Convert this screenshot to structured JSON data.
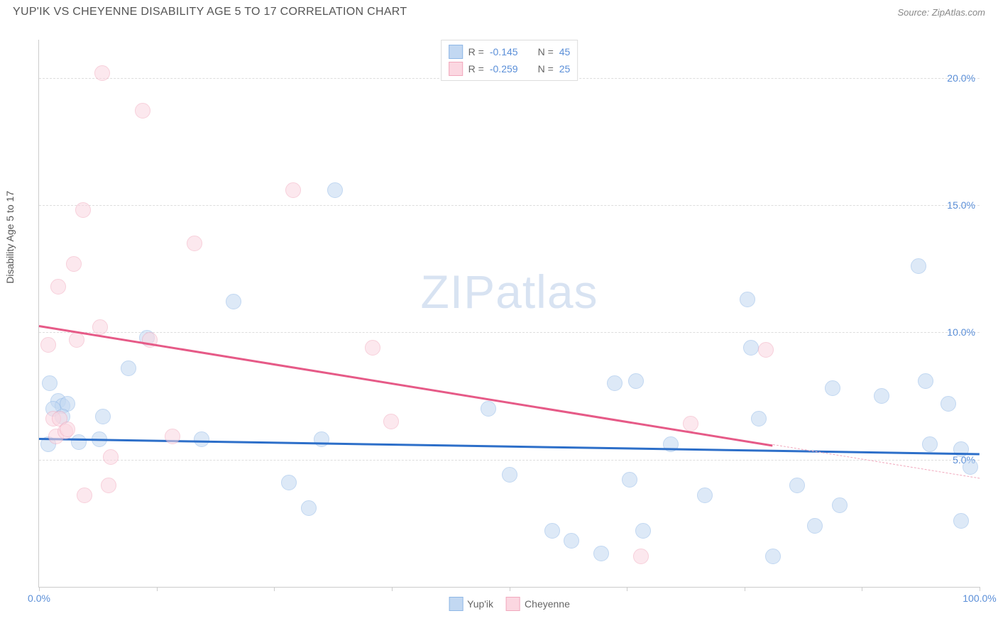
{
  "title": "YUP'IK VS CHEYENNE DISABILITY AGE 5 TO 17 CORRELATION CHART",
  "source": "Source: ZipAtlas.com",
  "ylabel": "Disability Age 5 to 17",
  "watermark_zip": "ZIP",
  "watermark_atlas": "atlas",
  "chart": {
    "type": "scatter",
    "background_color": "#ffffff",
    "grid_color": "#dddddd",
    "xlim": [
      0,
      100
    ],
    "ylim": [
      0,
      21.5
    ],
    "x_ticks": [
      0,
      12.5,
      25,
      37.5,
      50,
      62.5,
      75,
      87.5,
      100
    ],
    "x_tick_labels": {
      "0": "0.0%",
      "100": "100.0%"
    },
    "y_gridlines": [
      5,
      10,
      15,
      20
    ],
    "y_tick_labels": {
      "5": "5.0%",
      "10": "10.0%",
      "15": "15.0%",
      "20": "20.0%"
    },
    "point_radius": 11,
    "point_opacity": 0.55,
    "series": [
      {
        "name": "Yup'ik",
        "color": "#8fb7e6",
        "fill": "#c2d8f2",
        "line_color": "#2d6fc9",
        "R": "-0.145",
        "N": "45",
        "regression": {
          "x0": 0,
          "y0": 5.85,
          "x1": 100,
          "y1": 5.25,
          "ext_to_x": 100
        },
        "points": [
          [
            1.1,
            8.0
          ],
          [
            2.0,
            7.3
          ],
          [
            2.5,
            7.1
          ],
          [
            3.0,
            7.2
          ],
          [
            1.5,
            7.0
          ],
          [
            2.5,
            6.7
          ],
          [
            1.0,
            5.6
          ],
          [
            4.2,
            5.7
          ],
          [
            6.8,
            6.7
          ],
          [
            6.4,
            5.8
          ],
          [
            9.5,
            8.6
          ],
          [
            11.5,
            9.8
          ],
          [
            17.3,
            5.8
          ],
          [
            26.6,
            4.1
          ],
          [
            28.7,
            3.1
          ],
          [
            20.7,
            11.2
          ],
          [
            31.5,
            15.6
          ],
          [
            30.0,
            5.8
          ],
          [
            47.8,
            7.0
          ],
          [
            50.0,
            4.4
          ],
          [
            54.6,
            2.2
          ],
          [
            56.6,
            1.8
          ],
          [
            59.8,
            1.3
          ],
          [
            61.2,
            8.0
          ],
          [
            63.5,
            8.1
          ],
          [
            62.8,
            4.2
          ],
          [
            64.2,
            2.2
          ],
          [
            67.2,
            5.6
          ],
          [
            70.8,
            3.6
          ],
          [
            75.3,
            11.3
          ],
          [
            75.7,
            9.4
          ],
          [
            76.5,
            6.6
          ],
          [
            78.0,
            1.2
          ],
          [
            80.6,
            4.0
          ],
          [
            82.5,
            2.4
          ],
          [
            84.4,
            7.8
          ],
          [
            85.1,
            3.2
          ],
          [
            93.5,
            12.6
          ],
          [
            89.6,
            7.5
          ],
          [
            94.3,
            8.1
          ],
          [
            94.7,
            5.6
          ],
          [
            96.7,
            7.2
          ],
          [
            98.0,
            2.6
          ],
          [
            98.0,
            5.4
          ],
          [
            99.0,
            4.7
          ]
        ]
      },
      {
        "name": "Cheyenne",
        "color": "#f1a8bd",
        "fill": "#fbd7e1",
        "line_color": "#e65a87",
        "R": "-0.259",
        "N": "25",
        "regression": {
          "x0": 0,
          "y0": 10.3,
          "x1": 78,
          "y1": 5.6,
          "ext_to_x": 100
        },
        "points": [
          [
            1.0,
            9.5
          ],
          [
            1.5,
            6.6
          ],
          [
            2.2,
            6.6
          ],
          [
            1.8,
            5.9
          ],
          [
            2.8,
            6.1
          ],
          [
            3.0,
            6.2
          ],
          [
            2.0,
            11.8
          ],
          [
            3.7,
            12.7
          ],
          [
            4.7,
            14.8
          ],
          [
            4.0,
            9.7
          ],
          [
            6.7,
            20.2
          ],
          [
            6.5,
            10.2
          ],
          [
            7.6,
            5.1
          ],
          [
            7.4,
            4.0
          ],
          [
            4.8,
            3.6
          ],
          [
            11.0,
            18.7
          ],
          [
            11.8,
            9.7
          ],
          [
            14.2,
            5.9
          ],
          [
            16.5,
            13.5
          ],
          [
            27.0,
            15.6
          ],
          [
            35.5,
            9.4
          ],
          [
            37.4,
            6.5
          ],
          [
            64.0,
            1.2
          ],
          [
            69.3,
            6.4
          ],
          [
            77.3,
            9.3
          ]
        ]
      }
    ]
  },
  "legend_top": {
    "r_label": "R =",
    "n_label": "N ="
  },
  "legend_bottom": {
    "items": [
      "Yup'ik",
      "Cheyenne"
    ]
  }
}
